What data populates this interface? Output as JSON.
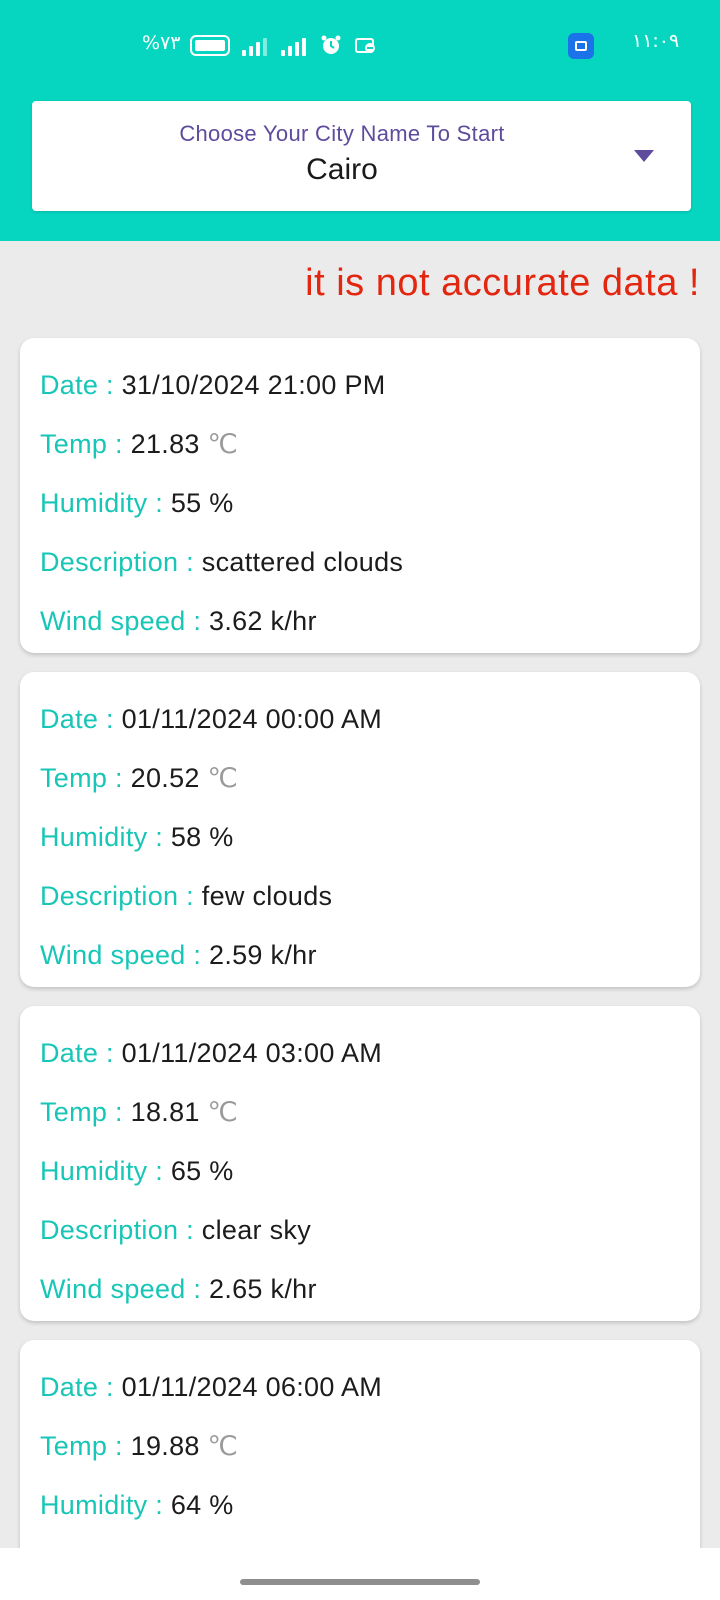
{
  "status_bar": {
    "battery_text": "%٧٣",
    "time": "١١:٠٩",
    "icons": [
      "battery-icon",
      "signal-icon",
      "signal-icon",
      "alarm-icon",
      "message-icon",
      "app-notification-icon"
    ]
  },
  "city_selector": {
    "label": "Choose Your City Name To Start",
    "selected": "Cairo"
  },
  "notice": "it is not accurate data !",
  "labels": {
    "date": "Date :",
    "temp": "Temp :",
    "humidity": "Humidity :",
    "description": "Description :",
    "wind": "Wind speed :"
  },
  "forecasts": [
    {
      "date": "31/10/2024 21:00 PM",
      "temp": "21.83",
      "temp_unit": "℃",
      "humidity": "55 %",
      "description": "scattered clouds",
      "wind": "3.62 k/hr"
    },
    {
      "date": "01/11/2024 00:00 AM",
      "temp": "20.52",
      "temp_unit": "℃",
      "humidity": "58 %",
      "description": "few clouds",
      "wind": "2.59 k/hr"
    },
    {
      "date": "01/11/2024 03:00 AM",
      "temp": "18.81",
      "temp_unit": "℃",
      "humidity": "65 %",
      "description": "clear sky",
      "wind": "2.65 k/hr"
    },
    {
      "date": "01/11/2024 06:00 AM",
      "temp": "19.88",
      "temp_unit": "℃",
      "humidity": "64 %"
    }
  ],
  "colors": {
    "header": "#06d6c0",
    "label": "#17c6b6",
    "notice": "#e3260f",
    "city_label": "#5e4b9c"
  }
}
